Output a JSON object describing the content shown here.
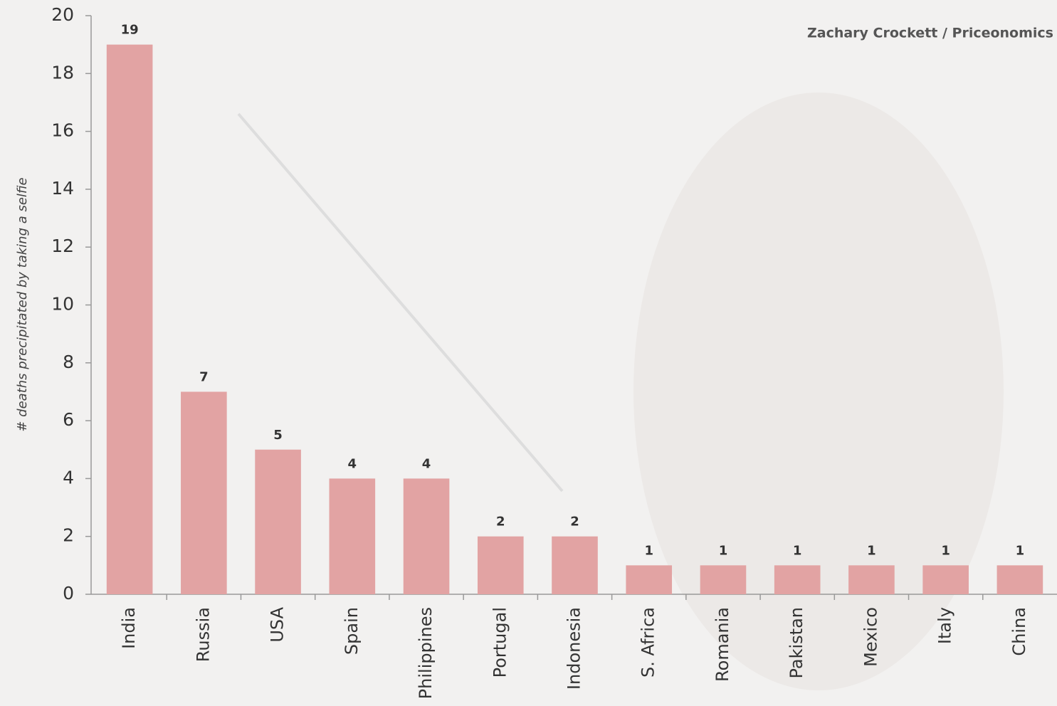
{
  "chart_data": {
    "type": "bar",
    "ylabel": "# deaths precipitated by taking a selfie",
    "annotation": "Zachary Crockett / Priceonomics",
    "categories": [
      "India",
      "Russia",
      "USA",
      "Spain",
      "Philippines",
      "Portugal",
      "Indonesia",
      "S. Africa",
      "Romania",
      "Pakistan",
      "Mexico",
      "Italy",
      "China"
    ],
    "values": [
      19,
      7,
      5,
      4,
      4,
      2,
      2,
      1,
      1,
      1,
      1,
      1,
      1
    ],
    "color": "#e2a3a3",
    "ylim": [
      0,
      20
    ],
    "yticks": [
      0,
      2,
      4,
      6,
      8,
      10,
      12,
      14,
      16,
      18,
      20
    ],
    "grid": false
  }
}
